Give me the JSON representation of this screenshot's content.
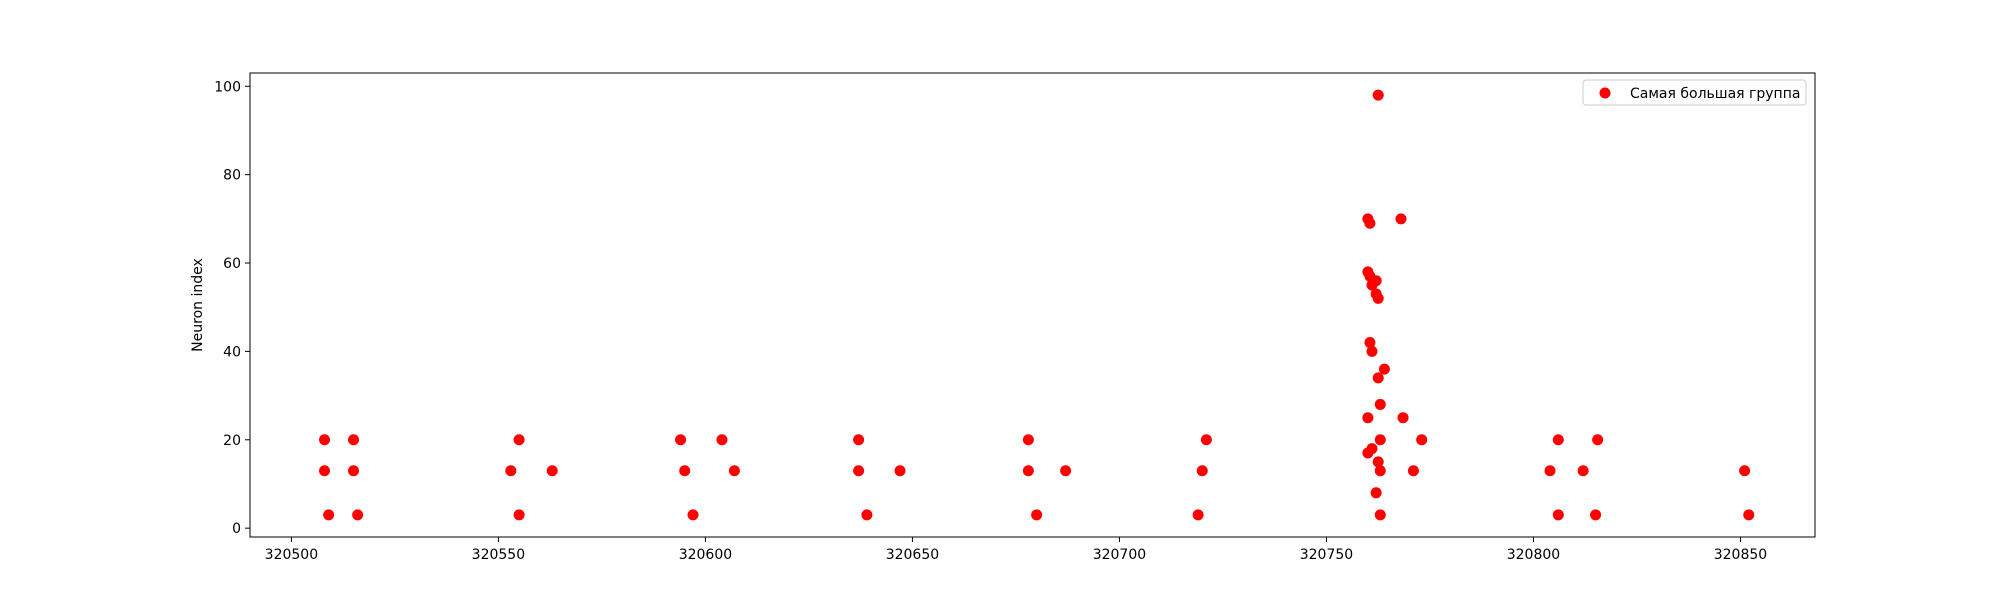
{
  "chart_data": {
    "type": "scatter",
    "title": "",
    "xlabel": "",
    "ylabel": "Neuron index",
    "xlim": [
      320490,
      320868
    ],
    "ylim": [
      -2,
      103
    ],
    "xticks": [
      320500,
      320550,
      320600,
      320650,
      320700,
      320750,
      320800,
      320850
    ],
    "yticks": [
      0,
      20,
      40,
      60,
      80,
      100
    ],
    "grid": false,
    "legend_position": "top-right",
    "series": [
      {
        "name": "Самая большая группа",
        "color": "#ff0000",
        "marker": "circle",
        "points": [
          [
            320508,
            20
          ],
          [
            320508,
            13
          ],
          [
            320509,
            3
          ],
          [
            320515,
            20
          ],
          [
            320515,
            13
          ],
          [
            320516,
            3
          ],
          [
            320553,
            13
          ],
          [
            320555,
            20
          ],
          [
            320555,
            3
          ],
          [
            320563,
            13
          ],
          [
            320594,
            20
          ],
          [
            320595,
            13
          ],
          [
            320597,
            3
          ],
          [
            320604,
            20
          ],
          [
            320607,
            13
          ],
          [
            320637,
            20
          ],
          [
            320637,
            13
          ],
          [
            320639,
            3
          ],
          [
            320647,
            13
          ],
          [
            320678,
            20
          ],
          [
            320678,
            13
          ],
          [
            320680,
            3
          ],
          [
            320687,
            13
          ],
          [
            320719,
            3
          ],
          [
            320720,
            13
          ],
          [
            320721,
            20
          ],
          [
            320760,
            70
          ],
          [
            320760.5,
            69
          ],
          [
            320760,
            58
          ],
          [
            320760.5,
            57
          ],
          [
            320761,
            55
          ],
          [
            320762,
            56
          ],
          [
            320762,
            53
          ],
          [
            320762.5,
            52
          ],
          [
            320760.5,
            42
          ],
          [
            320761,
            40
          ],
          [
            320762.5,
            34
          ],
          [
            320764,
            36
          ],
          [
            320763,
            28
          ],
          [
            320760,
            25
          ],
          [
            320760,
            17
          ],
          [
            320761,
            18
          ],
          [
            320762.5,
            15
          ],
          [
            320763,
            20
          ],
          [
            320763,
            13
          ],
          [
            320762,
            8
          ],
          [
            320763,
            3
          ],
          [
            320762.5,
            98
          ],
          [
            320768,
            70
          ],
          [
            320768.5,
            25
          ],
          [
            320771,
            13
          ],
          [
            320773,
            20
          ],
          [
            320804,
            13
          ],
          [
            320806,
            20
          ],
          [
            320806,
            3
          ],
          [
            320812,
            13
          ],
          [
            320815,
            3
          ],
          [
            320815.5,
            20
          ],
          [
            320851,
            13
          ],
          [
            320852,
            3
          ]
        ]
      }
    ]
  }
}
